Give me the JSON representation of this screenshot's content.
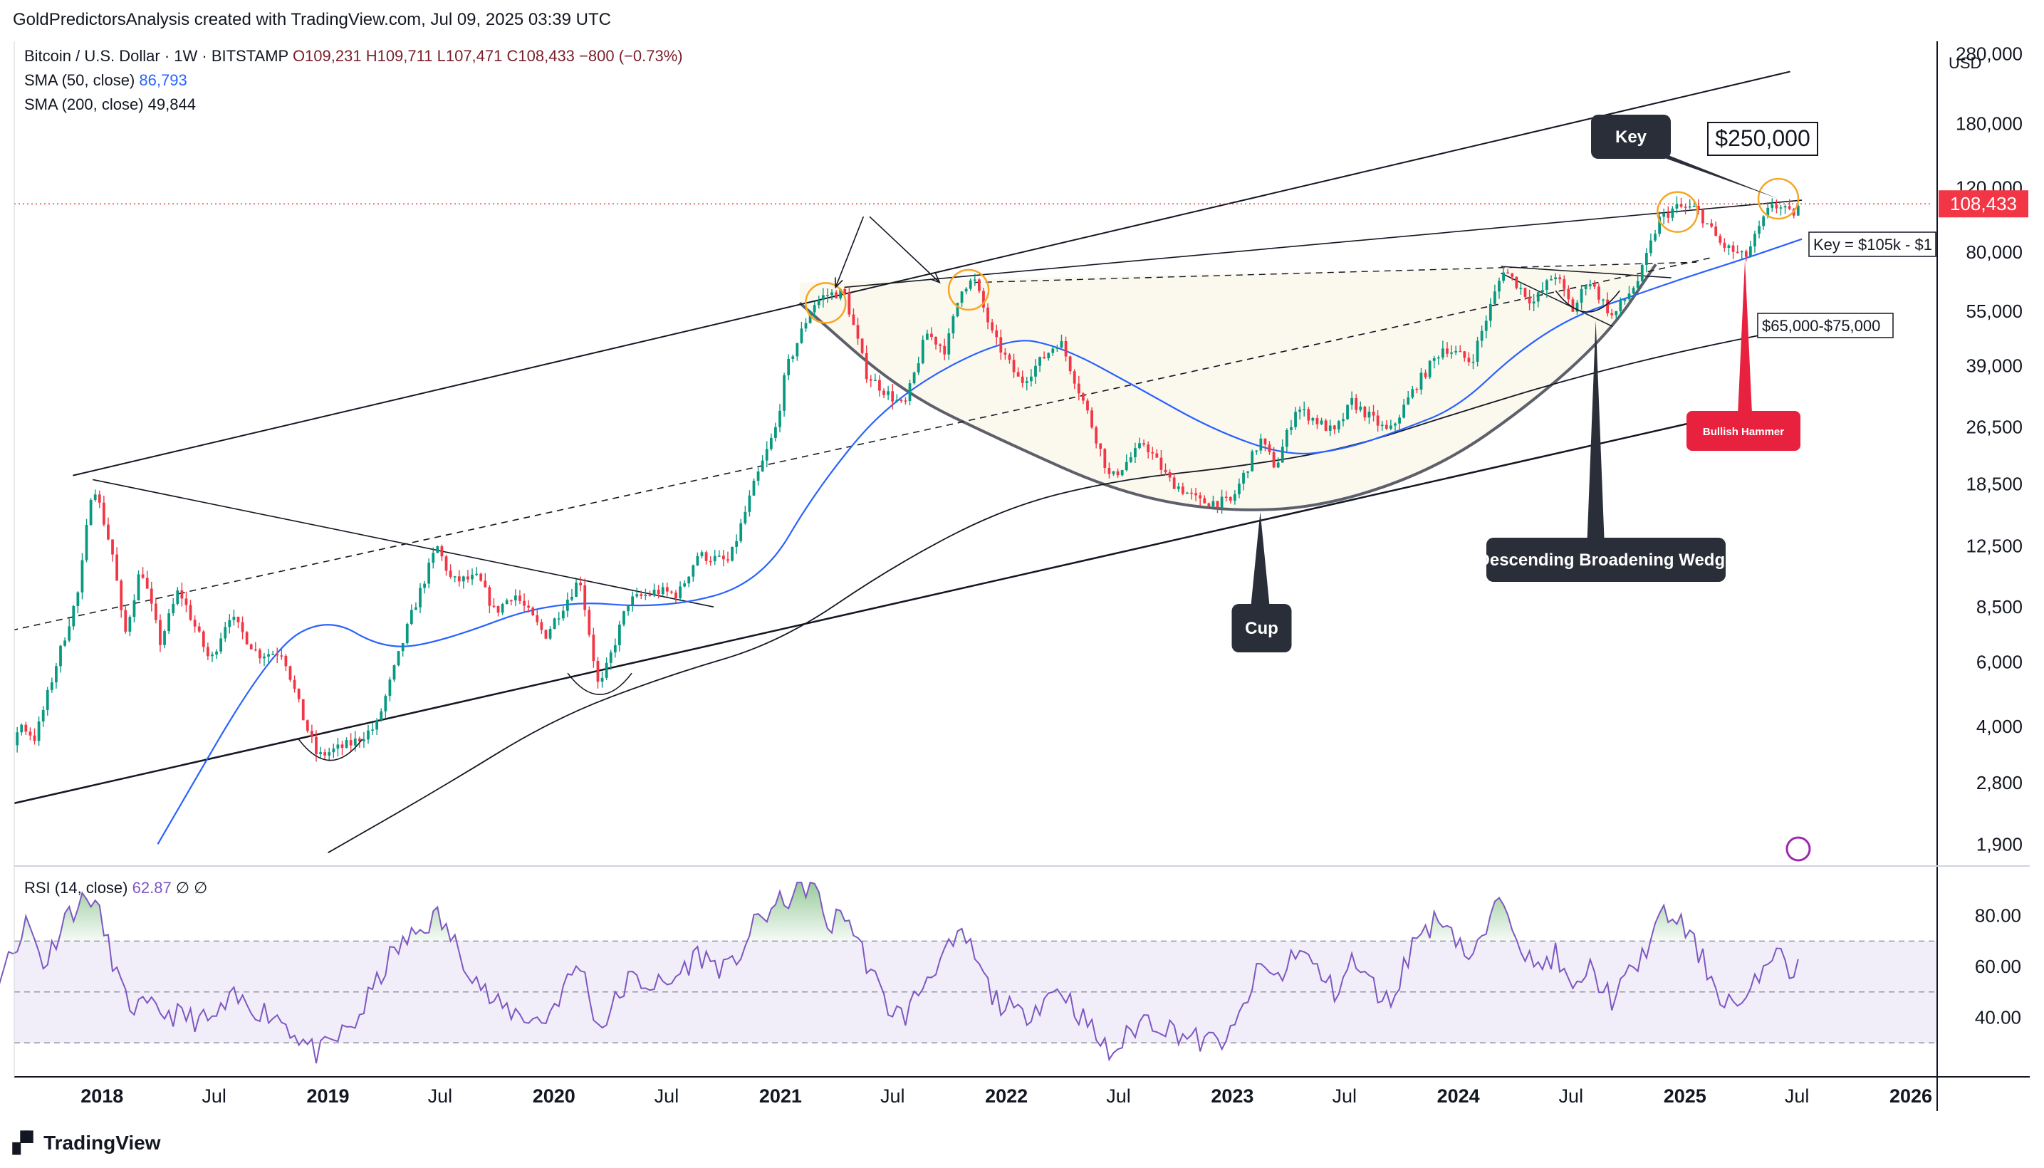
{
  "attribution": "GoldPredictorsAnalysis created with TradingView.com, Jul 09, 2025 03:39 UTC",
  "footer_brand": "TradingView",
  "legend": {
    "symbol": "Bitcoin / U.S. Dollar · 1W · BITSTAMP",
    "open": "O109,231",
    "high": "H109,711",
    "low": "L107,471",
    "close": "C108,433",
    "change": "−800 (−0.73%)",
    "sma50_label": "SMA (50, close)",
    "sma50_value": "86,793",
    "sma200_label": "SMA (200, close)",
    "sma200_value": "49,844",
    "rsi_label": "RSI (14, close)",
    "rsi_value": "62.87",
    "rsi_extra": "∅ ∅"
  },
  "colors": {
    "up": "#089981",
    "down": "#f23645",
    "sma50": "#2962ff",
    "sma200": "#131722",
    "rsi": "#7e57c2",
    "cup_fill": "#fbf8ee",
    "price_tag": "#f23645",
    "label_bg": "#2a2e39",
    "hammer": "#e8213f",
    "circle": "#f5a623"
  },
  "chart_data": {
    "type": "candlestick",
    "title": "Bitcoin / U.S. Dollar · 1W · BITSTAMP",
    "currency_label": "USD",
    "scale": "log",
    "ylim": [
      1700,
      300000
    ],
    "y_ticks": [
      280000,
      180000,
      120000,
      80000,
      55000,
      39000,
      26500,
      18500,
      12500,
      8500,
      6000,
      4000,
      2800,
      1900
    ],
    "y_tick_labels": [
      "280,000",
      "180,000",
      "120,000",
      "80,000",
      "55,000",
      "39,000",
      "26,500",
      "18,500",
      "12,500",
      "8,500",
      "6,000",
      "4,000",
      "2,800",
      "1,900"
    ],
    "x_ticks": [
      {
        "date": "2017-07-01",
        "label": "Jul",
        "bold": false
      },
      {
        "date": "2018-01-01",
        "label": "2018",
        "bold": true
      },
      {
        "date": "2018-07-01",
        "label": "Jul",
        "bold": false
      },
      {
        "date": "2019-01-01",
        "label": "2019",
        "bold": true
      },
      {
        "date": "2019-07-01",
        "label": "Jul",
        "bold": false
      },
      {
        "date": "2020-01-01",
        "label": "2020",
        "bold": true
      },
      {
        "date": "2020-07-01",
        "label": "Jul",
        "bold": false
      },
      {
        "date": "2021-01-01",
        "label": "2021",
        "bold": true
      },
      {
        "date": "2021-07-01",
        "label": "Jul",
        "bold": false
      },
      {
        "date": "2022-01-01",
        "label": "2022",
        "bold": true
      },
      {
        "date": "2022-07-01",
        "label": "Jul",
        "bold": false
      },
      {
        "date": "2023-01-01",
        "label": "2023",
        "bold": true
      },
      {
        "date": "2023-07-01",
        "label": "Jul",
        "bold": false
      },
      {
        "date": "2024-01-01",
        "label": "2024",
        "bold": true
      },
      {
        "date": "2024-07-01",
        "label": "Jul",
        "bold": false
      },
      {
        "date": "2025-01-01",
        "label": "2025",
        "bold": true
      },
      {
        "date": "2025-07-01",
        "label": "Jul",
        "bold": false
      },
      {
        "date": "2026-01-01",
        "label": "2026",
        "bold": true
      }
    ],
    "last_price": 108433,
    "last_price_label": "108,433",
    "close_path": [
      {
        "date": "2017-04-20",
        "price": 1750
      },
      {
        "date": "2017-06-10",
        "price": 2700
      },
      {
        "date": "2017-07-15",
        "price": 2200
      },
      {
        "date": "2017-08-20",
        "price": 4100
      },
      {
        "date": "2017-09-15",
        "price": 3700
      },
      {
        "date": "2017-10-20",
        "price": 6000
      },
      {
        "date": "2017-11-25",
        "price": 9500
      },
      {
        "date": "2017-12-17",
        "price": 19000
      },
      {
        "date": "2018-01-20",
        "price": 11500
      },
      {
        "date": "2018-02-06",
        "price": 7000
      },
      {
        "date": "2018-03-05",
        "price": 11000
      },
      {
        "date": "2018-04-05",
        "price": 6800
      },
      {
        "date": "2018-05-05",
        "price": 9500
      },
      {
        "date": "2018-06-25",
        "price": 6000
      },
      {
        "date": "2018-07-25",
        "price": 8100
      },
      {
        "date": "2018-09-10",
        "price": 6300
      },
      {
        "date": "2018-10-20",
        "price": 6400
      },
      {
        "date": "2018-11-20",
        "price": 4300
      },
      {
        "date": "2018-12-15",
        "price": 3300
      },
      {
        "date": "2019-02-10",
        "price": 3600
      },
      {
        "date": "2019-03-20",
        "price": 4000
      },
      {
        "date": "2019-05-15",
        "price": 8000
      },
      {
        "date": "2019-06-26",
        "price": 12500
      },
      {
        "date": "2019-07-20",
        "price": 10000
      },
      {
        "date": "2019-09-01",
        "price": 10200
      },
      {
        "date": "2019-09-28",
        "price": 8200
      },
      {
        "date": "2019-10-28",
        "price": 9300
      },
      {
        "date": "2019-12-18",
        "price": 7100
      },
      {
        "date": "2020-02-12",
        "price": 10200
      },
      {
        "date": "2020-03-14",
        "price": 5000
      },
      {
        "date": "2020-04-30",
        "price": 8800
      },
      {
        "date": "2020-06-15",
        "price": 9400
      },
      {
        "date": "2020-07-20",
        "price": 9200
      },
      {
        "date": "2020-08-20",
        "price": 11800
      },
      {
        "date": "2020-10-10",
        "price": 11300
      },
      {
        "date": "2020-11-20",
        "price": 18500
      },
      {
        "date": "2020-12-25",
        "price": 26500
      },
      {
        "date": "2021-01-10",
        "price": 38000
      },
      {
        "date": "2021-02-21",
        "price": 57000
      },
      {
        "date": "2021-03-14",
        "price": 61000
      },
      {
        "date": "2021-04-14",
        "price": 62000
      },
      {
        "date": "2021-05-20",
        "price": 37000
      },
      {
        "date": "2021-06-20",
        "price": 33000
      },
      {
        "date": "2021-07-20",
        "price": 30000
      },
      {
        "date": "2021-08-25",
        "price": 48000
      },
      {
        "date": "2021-09-25",
        "price": 43000
      },
      {
        "date": "2021-10-20",
        "price": 64000
      },
      {
        "date": "2021-11-10",
        "price": 67000
      },
      {
        "date": "2021-12-10",
        "price": 47000
      },
      {
        "date": "2022-01-24",
        "price": 35000
      },
      {
        "date": "2022-03-28",
        "price": 46000
      },
      {
        "date": "2022-05-12",
        "price": 29000
      },
      {
        "date": "2022-06-18",
        "price": 19000
      },
      {
        "date": "2022-08-12",
        "price": 24000
      },
      {
        "date": "2022-09-20",
        "price": 19000
      },
      {
        "date": "2022-11-09",
        "price": 16500
      },
      {
        "date": "2022-12-30",
        "price": 16500
      },
      {
        "date": "2023-02-15",
        "price": 24500
      },
      {
        "date": "2023-03-12",
        "price": 20500
      },
      {
        "date": "2023-04-14",
        "price": 30000
      },
      {
        "date": "2023-06-15",
        "price": 25500
      },
      {
        "date": "2023-07-13",
        "price": 31000
      },
      {
        "date": "2023-09-11",
        "price": 25500
      },
      {
        "date": "2023-10-25",
        "price": 34500
      },
      {
        "date": "2023-12-08",
        "price": 44000
      },
      {
        "date": "2024-01-22",
        "price": 40000
      },
      {
        "date": "2024-03-14",
        "price": 72000
      },
      {
        "date": "2024-05-01",
        "price": 58000
      },
      {
        "date": "2024-06-05",
        "price": 70000
      },
      {
        "date": "2024-07-05",
        "price": 55000
      },
      {
        "date": "2024-07-28",
        "price": 68000
      },
      {
        "date": "2024-09-06",
        "price": 53000
      },
      {
        "date": "2024-10-20",
        "price": 68000
      },
      {
        "date": "2024-11-20",
        "price": 98000
      },
      {
        "date": "2024-12-17",
        "price": 106000
      },
      {
        "date": "2025-01-20",
        "price": 105000
      },
      {
        "date": "2025-02-28",
        "price": 84000
      },
      {
        "date": "2025-04-08",
        "price": 77000
      },
      {
        "date": "2025-05-22",
        "price": 109000
      },
      {
        "date": "2025-06-22",
        "price": 101000
      },
      {
        "date": "2025-07-09",
        "price": 108433
      }
    ],
    "sma50_path": [
      {
        "date": "2018-04-01",
        "price": 1900
      },
      {
        "date": "2018-10-01",
        "price": 6500
      },
      {
        "date": "2019-01-01",
        "price": 8000
      },
      {
        "date": "2019-04-01",
        "price": 6500
      },
      {
        "date": "2019-07-01",
        "price": 6800
      },
      {
        "date": "2020-01-01",
        "price": 8900
      },
      {
        "date": "2020-07-01",
        "price": 8400
      },
      {
        "date": "2020-12-01",
        "price": 9900
      },
      {
        "date": "2021-03-01",
        "price": 18000
      },
      {
        "date": "2021-07-01",
        "price": 32000
      },
      {
        "date": "2022-01-01",
        "price": 47000
      },
      {
        "date": "2022-04-01",
        "price": 44000
      },
      {
        "date": "2022-08-01",
        "price": 34000
      },
      {
        "date": "2022-12-01",
        "price": 26000
      },
      {
        "date": "2023-04-01",
        "price": 22000
      },
      {
        "date": "2023-07-01",
        "price": 23000
      },
      {
        "date": "2023-10-01",
        "price": 26000
      },
      {
        "date": "2024-01-01",
        "price": 30000
      },
      {
        "date": "2024-04-01",
        "price": 42000
      },
      {
        "date": "2024-07-01",
        "price": 53000
      },
      {
        "date": "2024-10-01",
        "price": 60000
      },
      {
        "date": "2025-01-01",
        "price": 68000
      },
      {
        "date": "2025-04-01",
        "price": 76000
      },
      {
        "date": "2025-07-09",
        "price": 86793
      }
    ],
    "sma200_path": [
      {
        "date": "2019-01-01",
        "price": 1800
      },
      {
        "date": "2019-07-01",
        "price": 2700
      },
      {
        "date": "2020-01-01",
        "price": 4200
      },
      {
        "date": "2020-07-01",
        "price": 5500
      },
      {
        "date": "2021-01-01",
        "price": 6800
      },
      {
        "date": "2021-07-01",
        "price": 11000
      },
      {
        "date": "2022-01-01",
        "price": 16000
      },
      {
        "date": "2022-07-01",
        "price": 19000
      },
      {
        "date": "2023-01-01",
        "price": 20500
      },
      {
        "date": "2023-07-01",
        "price": 23000
      },
      {
        "date": "2024-01-01",
        "price": 29000
      },
      {
        "date": "2024-07-01",
        "price": 36000
      },
      {
        "date": "2025-01-01",
        "price": 43000
      },
      {
        "date": "2025-07-09",
        "price": 49844
      }
    ],
    "rsi": {
      "levels": [
        80,
        60,
        40
      ],
      "level_labels": [
        "80.00",
        "60.00",
        "40.00"
      ],
      "band": [
        30,
        70
      ],
      "ylim": [
        20,
        95
      ],
      "last_value": 62.87,
      "path": [
        {
          "date": "2017-04-20",
          "value": 58
        },
        {
          "date": "2017-06-15",
          "value": 82
        },
        {
          "date": "2017-07-20",
          "value": 55
        },
        {
          "date": "2017-09-01",
          "value": 78
        },
        {
          "date": "2017-10-01",
          "value": 60
        },
        {
          "date": "2017-11-01",
          "value": 80
        },
        {
          "date": "2017-12-17",
          "value": 88
        },
        {
          "date": "2018-02-10",
          "value": 45
        },
        {
          "date": "2018-04-10",
          "value": 42
        },
        {
          "date": "2018-06-25",
          "value": 38
        },
        {
          "date": "2018-08-01",
          "value": 47
        },
        {
          "date": "2018-10-15",
          "value": 40
        },
        {
          "date": "2018-12-15",
          "value": 25
        },
        {
          "date": "2019-02-15",
          "value": 38
        },
        {
          "date": "2019-04-15",
          "value": 65
        },
        {
          "date": "2019-06-26",
          "value": 80
        },
        {
          "date": "2019-09-25",
          "value": 45
        },
        {
          "date": "2019-12-15",
          "value": 38
        },
        {
          "date": "2020-02-12",
          "value": 62
        },
        {
          "date": "2020-03-14",
          "value": 35
        },
        {
          "date": "2020-05-01",
          "value": 55
        },
        {
          "date": "2020-07-01",
          "value": 52
        },
        {
          "date": "2020-08-20",
          "value": 65
        },
        {
          "date": "2020-10-10",
          "value": 58
        },
        {
          "date": "2020-11-25",
          "value": 78
        },
        {
          "date": "2021-01-08",
          "value": 86
        },
        {
          "date": "2021-02-21",
          "value": 93
        },
        {
          "date": "2021-03-20",
          "value": 75
        },
        {
          "date": "2021-04-14",
          "value": 82
        },
        {
          "date": "2021-06-20",
          "value": 45
        },
        {
          "date": "2021-07-20",
          "value": 40
        },
        {
          "date": "2021-09-05",
          "value": 60
        },
        {
          "date": "2021-10-25",
          "value": 72
        },
        {
          "date": "2021-12-10",
          "value": 48
        },
        {
          "date": "2022-01-24",
          "value": 40
        },
        {
          "date": "2022-03-28",
          "value": 52
        },
        {
          "date": "2022-06-18",
          "value": 25
        },
        {
          "date": "2022-08-12",
          "value": 40
        },
        {
          "date": "2022-11-15",
          "value": 30
        },
        {
          "date": "2022-12-30",
          "value": 32
        },
        {
          "date": "2023-02-15",
          "value": 60
        },
        {
          "date": "2023-03-20",
          "value": 55
        },
        {
          "date": "2023-04-15",
          "value": 68
        },
        {
          "date": "2023-06-15",
          "value": 50
        },
        {
          "date": "2023-07-13",
          "value": 62
        },
        {
          "date": "2023-09-11",
          "value": 45
        },
        {
          "date": "2023-10-25",
          "value": 72
        },
        {
          "date": "2023-12-08",
          "value": 80
        },
        {
          "date": "2024-01-22",
          "value": 62
        },
        {
          "date": "2024-03-14",
          "value": 88
        },
        {
          "date": "2024-05-01",
          "value": 58
        },
        {
          "date": "2024-06-05",
          "value": 65
        },
        {
          "date": "2024-07-05",
          "value": 48
        },
        {
          "date": "2024-07-28",
          "value": 60
        },
        {
          "date": "2024-09-06",
          "value": 47
        },
        {
          "date": "2024-10-20",
          "value": 62
        },
        {
          "date": "2024-11-22",
          "value": 79
        },
        {
          "date": "2024-12-17",
          "value": 80
        },
        {
          "date": "2025-01-20",
          "value": 67
        },
        {
          "date": "2025-03-01",
          "value": 48
        },
        {
          "date": "2025-04-08",
          "value": 44
        },
        {
          "date": "2025-05-22",
          "value": 67
        },
        {
          "date": "2025-06-22",
          "value": 58
        },
        {
          "date": "2025-07-09",
          "value": 62.87
        }
      ]
    }
  },
  "annotations": {
    "key_label": "Key",
    "target_label": "$250,000",
    "key_range_label": "Key = $105k - $1",
    "support_label": "$65,000-$75,000",
    "hammer_label": "Bullish Hammer",
    "wedge_label": "Descending Broadening Wedge",
    "cup_label": "Cup",
    "upper_channel": [
      {
        "date": "2017-11-15",
        "price": 19500
      },
      {
        "date": "2025-06-20",
        "price": 250000
      }
    ],
    "lower_channel": [
      {
        "date": "2017-07-15",
        "price": 2400
      },
      {
        "date": "2025-03-25",
        "price": 29000
      }
    ],
    "mid_dashed": [
      {
        "date": "2017-06-15",
        "price": 7000
      },
      {
        "date": "2025-02-10",
        "price": 77000
      }
    ],
    "resistance_2018": [
      {
        "date": "2017-12-17",
        "price": 19000
      },
      {
        "date": "2020-09-15",
        "price": 8500
      }
    ],
    "rim_line": [
      {
        "date": "2021-04-14",
        "price": 64000
      },
      {
        "date": "2025-07-09",
        "price": 111000
      }
    ],
    "neckline_dashed": [
      {
        "date": "2021-11-10",
        "price": 66000
      },
      {
        "date": "2025-01-20",
        "price": 75000
      }
    ],
    "wedge_top": [
      {
        "date": "2024-03-10",
        "price": 73000
      },
      {
        "date": "2024-12-10",
        "price": 68000
      }
    ],
    "wedge_bottom": [
      {
        "date": "2024-03-10",
        "price": 70000
      },
      {
        "date": "2024-09-06",
        "price": 50000
      }
    ],
    "cup_points": [
      {
        "date": "2021-02-01",
        "price": 58000
      },
      {
        "date": "2021-07-15",
        "price": 33000
      },
      {
        "date": "2022-01-01",
        "price": 24000
      },
      {
        "date": "2022-07-01",
        "price": 17500
      },
      {
        "date": "2022-12-15",
        "price": 15500
      },
      {
        "date": "2023-06-01",
        "price": 16000
      },
      {
        "date": "2023-12-01",
        "price": 20500
      },
      {
        "date": "2024-05-01",
        "price": 31000
      },
      {
        "date": "2024-09-01",
        "price": 48000
      },
      {
        "date": "2024-11-15",
        "price": 74000
      }
    ],
    "circles": [
      {
        "date": "2021-03-15",
        "price": 58000
      },
      {
        "date": "2021-11-01",
        "price": 63000
      },
      {
        "date": "2024-12-20",
        "price": 103000
      },
      {
        "date": "2025-06-01",
        "price": 112000
      }
    ],
    "bowls": [
      {
        "date": "2019-01-05",
        "price": 3300
      },
      {
        "date": "2020-03-15",
        "price": 5000
      },
      {
        "date": "2024-07-28",
        "price": 56000
      }
    ],
    "arrows": [
      {
        "from_date": "2021-05-15",
        "from_price": 100000,
        "to_date": "2021-03-31",
        "to_price": 64000
      },
      {
        "from_date": "2021-05-25",
        "from_price": 100000,
        "to_date": "2021-09-15",
        "to_price": 66000
      }
    ]
  }
}
